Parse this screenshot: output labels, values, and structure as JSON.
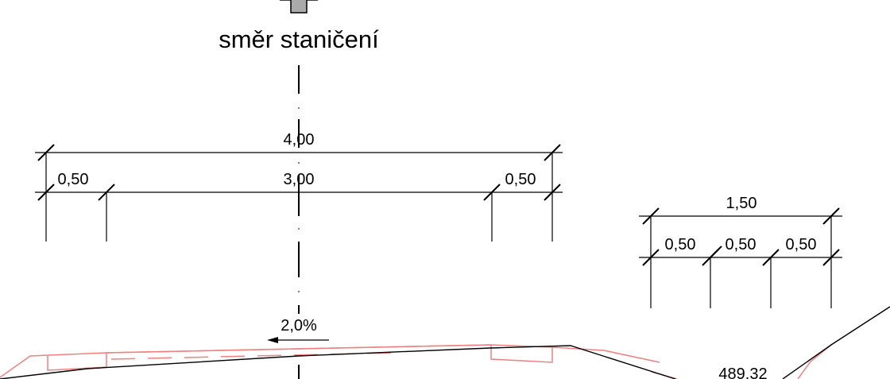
{
  "direction": {
    "label": "směr staničení"
  },
  "upper": {
    "total": "4,00",
    "left_edge": "0,50",
    "middle": "3,00",
    "right_edge": "0,50"
  },
  "right_group": {
    "total": "1,50",
    "seg1": "0,50",
    "seg2": "0,50",
    "seg3": "0,50"
  },
  "slope": {
    "label": "2,0%"
  },
  "elevation": {
    "label": "489,32"
  },
  "colors": {
    "line": "#000000",
    "proposed": "#f08080",
    "arrow": "#aaaaaa"
  }
}
